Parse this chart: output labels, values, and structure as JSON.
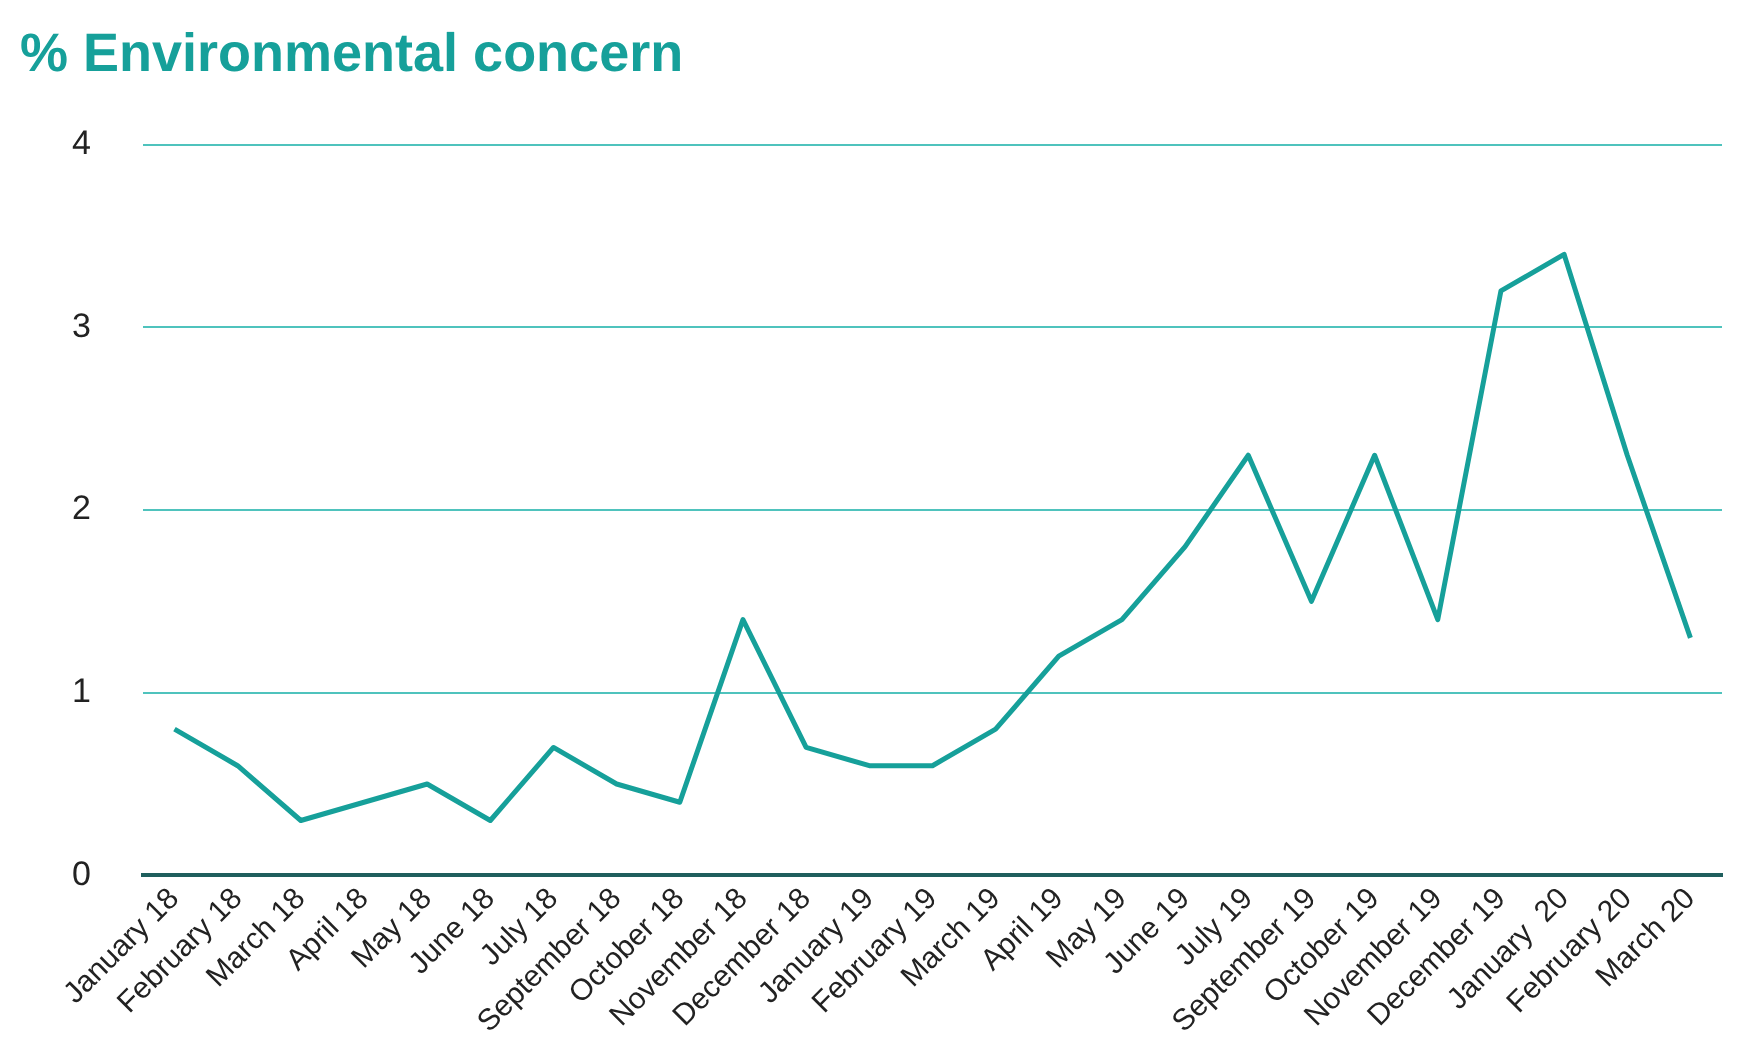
{
  "chart_data": {
    "type": "line",
    "title": "% Environmental concern",
    "categories": [
      "January 18",
      "February 18",
      "March 18",
      "April 18",
      "May 18",
      "June 18",
      "July 18",
      "September 18",
      "October 18",
      "November 18",
      "December 18",
      "January 19",
      "February 19",
      "March 19",
      "April 19",
      "May 19",
      "June 19",
      "July 19",
      "September 19",
      "October 19",
      "November 19",
      "December 19",
      "January  20",
      "February 20",
      "March 20"
    ],
    "series": [
      {
        "color": "#16a09a",
        "values": [
          0.8,
          0.6,
          0.3,
          0.4,
          0.5,
          0.3,
          0.7,
          0.5,
          0.4,
          1.4,
          0.7,
          0.6,
          0.6,
          0.8,
          1.2,
          1.4,
          1.8,
          2.3,
          1.5,
          2.3,
          1.4,
          3.2,
          3.4,
          2.3,
          1.3
        ]
      }
    ],
    "ylim": [
      0,
      4
    ],
    "yticks": [
      0,
      1,
      2,
      3,
      4
    ],
    "grid": "y",
    "legend": false,
    "marker": "none",
    "line_style": "solid"
  }
}
